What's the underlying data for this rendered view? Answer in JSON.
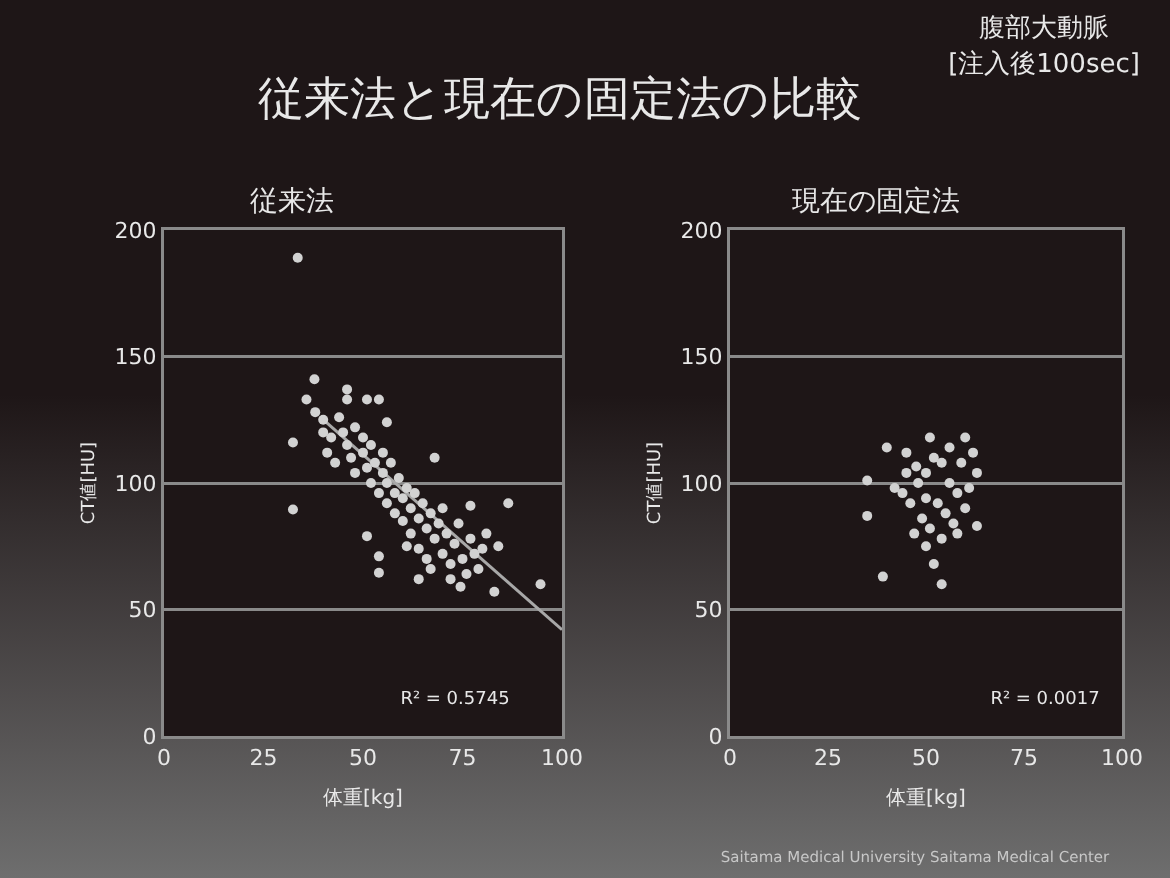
{
  "chart_data": [
    {
      "type": "scatter",
      "title": "従来法",
      "xlabel": "体重[kg]",
      "ylabel": "CT値[HU]",
      "xlim": [
        0,
        100
      ],
      "ylim": [
        0,
        200
      ],
      "xticks": [
        0,
        25,
        50,
        75,
        100
      ],
      "yticks": [
        0,
        50,
        100,
        150,
        200
      ],
      "grid": "y",
      "annotations": [
        "従来法と現在の固定法の比較",
        "腹部大動脈\n[注入後100sec]",
        "R² = 0.5745"
      ],
      "series": [
        {
          "color": "#d2d2d2",
          "marker": "circle",
          "x": [
            33.6,
            32.4,
            32.4,
            37.8,
            35.8,
            46,
            46,
            51,
            54,
            56,
            68,
            86.5,
            94.6,
            51,
            54,
            54,
            61,
            64,
            74.5,
            83,
            77,
            81,
            84,
            38,
            40,
            40,
            42,
            41,
            43,
            44,
            45,
            46,
            47,
            48,
            48,
            50,
            50,
            51,
            52,
            52,
            53,
            54,
            55,
            55,
            56,
            56,
            57,
            58,
            58,
            59,
            60,
            60,
            61,
            62,
            62,
            63,
            64,
            64,
            65,
            66,
            66,
            67,
            68,
            69,
            70,
            70,
            71,
            72,
            73,
            74,
            75,
            76,
            77,
            78,
            79,
            80,
            72,
            67
          ],
          "values": [
            189,
            89.5,
            116,
            141,
            133,
            137,
            133,
            133,
            133,
            124,
            110,
            92,
            60,
            79,
            71,
            64.5,
            75,
            62,
            59,
            57,
            91,
            80,
            75,
            128,
            125,
            120,
            118,
            112,
            108,
            126,
            120,
            115,
            110,
            122,
            104,
            118,
            112,
            106,
            100,
            115,
            108,
            96,
            104,
            112,
            100,
            92,
            108,
            96,
            88,
            102,
            94,
            85,
            98,
            90,
            80,
            96,
            86,
            74,
            92,
            82,
            70,
            88,
            78,
            84,
            72,
            90,
            80,
            68,
            76,
            84,
            70,
            64,
            78,
            72,
            66,
            74,
            62,
            66
          ]
        },
        {
          "type": "line",
          "color": "#a8a8a8",
          "x": [
            40,
            100
          ],
          "values": [
            125,
            42
          ]
        }
      ]
    },
    {
      "type": "scatter",
      "title": "現在の固定法",
      "xlabel": "体重[kg]",
      "ylabel": "CT値[HU]",
      "xlim": [
        0,
        100
      ],
      "ylim": [
        0,
        200
      ],
      "xticks": [
        0,
        25,
        50,
        75,
        100
      ],
      "yticks": [
        0,
        50,
        100,
        150,
        200
      ],
      "grid": "y",
      "annotations": [
        "R² = 0.0017",
        "Saitama Medical University Saitama Medical Center"
      ],
      "series": [
        {
          "color": "#d2d2d2",
          "marker": "circle",
          "x": [
            39,
            54,
            35,
            35,
            40,
            60,
            51,
            45,
            47.5,
            50,
            52,
            63,
            63,
            44,
            46,
            48,
            50,
            52,
            54,
            56,
            58,
            55,
            57,
            60,
            61,
            49,
            51,
            53,
            47,
            45,
            42,
            59,
            62,
            56,
            50,
            54,
            58
          ],
          "values": [
            63,
            60,
            101,
            87,
            114,
            118,
            118,
            112,
            106.5,
            75,
            68,
            104,
            83,
            96,
            92,
            100,
            104,
            110,
            108,
            100,
            96,
            88,
            84,
            90,
            98,
            86,
            82,
            92,
            80,
            104,
            98,
            108,
            112,
            114,
            94,
            78,
            80
          ]
        }
      ]
    }
  ]
}
